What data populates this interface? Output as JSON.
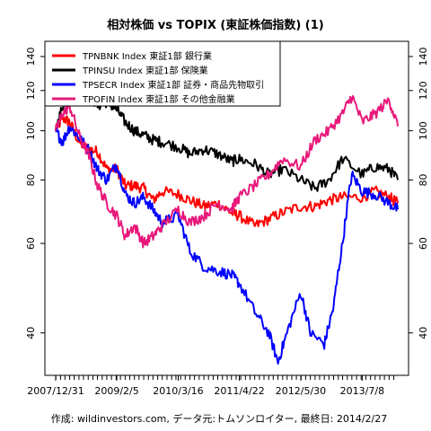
{
  "chart_data": {
    "type": "line",
    "title": "相対株価 vs TOPIX (東証株価指数) (1)",
    "caption": "作成: wildinvestors.com, データ元:トムソンロイター, 最終日: 2014/2/27",
    "y_scale": "log",
    "ylim": [
      33,
      150
    ],
    "y_ticks": [
      40,
      60,
      80,
      100,
      120,
      140
    ],
    "x_range": [
      "2007-12-31",
      "2014-02-27"
    ],
    "x_tick_labels": [
      "2007/12/31",
      "2009/2/5",
      "2010/3/16",
      "2011/4/22",
      "2012/5/30",
      "2013/7/8"
    ],
    "legend_position": "top-left",
    "series": [
      {
        "name": "TPNBNK Index 東証1部 銀行業",
        "color": "#ff0000",
        "points": [
          [
            "2007-12-31",
            100
          ],
          [
            "2008-02-15",
            106
          ],
          [
            "2008-04-01",
            104
          ],
          [
            "2008-06-01",
            95
          ],
          [
            "2008-08-01",
            92
          ],
          [
            "2008-10-01",
            91
          ],
          [
            "2008-12-01",
            84
          ],
          [
            "2009-02-05",
            84
          ],
          [
            "2009-04-01",
            78
          ],
          [
            "2009-06-01",
            78
          ],
          [
            "2009-08-01",
            77
          ],
          [
            "2009-10-01",
            73
          ],
          [
            "2009-12-01",
            76
          ],
          [
            "2010-03-16",
            75
          ],
          [
            "2010-06-01",
            73
          ],
          [
            "2010-09-01",
            71
          ],
          [
            "2010-12-01",
            72
          ],
          [
            "2011-03-01",
            69
          ],
          [
            "2011-04-22",
            68
          ],
          [
            "2011-08-01",
            65
          ],
          [
            "2011-11-01",
            67
          ],
          [
            "2012-02-01",
            69
          ],
          [
            "2012-05-30",
            71
          ],
          [
            "2012-09-01",
            71
          ],
          [
            "2012-12-01",
            73
          ],
          [
            "2013-03-01",
            74
          ],
          [
            "2013-07-08",
            74
          ],
          [
            "2013-10-01",
            76
          ],
          [
            "2014-01-01",
            74
          ],
          [
            "2014-02-27",
            72
          ]
        ]
      },
      {
        "name": "TPINSU Index 東証1部 保険業",
        "color": "#000000",
        "points": [
          [
            "2007-12-31",
            100
          ],
          [
            "2008-02-15",
            112
          ],
          [
            "2008-04-01",
            118
          ],
          [
            "2008-06-01",
            120
          ],
          [
            "2008-08-01",
            119
          ],
          [
            "2008-10-01",
            112
          ],
          [
            "2008-12-01",
            114
          ],
          [
            "2009-02-05",
            110
          ],
          [
            "2009-04-01",
            104
          ],
          [
            "2009-06-01",
            100
          ],
          [
            "2009-08-01",
            98
          ],
          [
            "2009-10-01",
            96
          ],
          [
            "2009-12-01",
            95
          ],
          [
            "2010-03-16",
            93
          ],
          [
            "2010-06-01",
            90
          ],
          [
            "2010-09-01",
            92
          ],
          [
            "2010-12-01",
            90
          ],
          [
            "2011-03-01",
            87
          ],
          [
            "2011-04-22",
            88
          ],
          [
            "2011-08-01",
            86
          ],
          [
            "2011-11-01",
            82
          ],
          [
            "2012-02-01",
            84
          ],
          [
            "2012-05-30",
            80
          ],
          [
            "2012-09-01",
            77
          ],
          [
            "2012-12-01",
            80
          ],
          [
            "2013-03-01",
            88
          ],
          [
            "2013-07-08",
            82
          ],
          [
            "2013-10-01",
            85
          ],
          [
            "2014-01-01",
            84
          ],
          [
            "2014-02-27",
            80
          ]
        ]
      },
      {
        "name": "TPSECR Index 東証1部 証券・商品先物取引",
        "color": "#0000ff",
        "points": [
          [
            "2007-12-31",
            100
          ],
          [
            "2008-02-15",
            95
          ],
          [
            "2008-04-01",
            102
          ],
          [
            "2008-06-01",
            97
          ],
          [
            "2008-08-01",
            92
          ],
          [
            "2008-10-01",
            84
          ],
          [
            "2008-12-01",
            80
          ],
          [
            "2009-02-05",
            86
          ],
          [
            "2009-04-01",
            75
          ],
          [
            "2009-06-01",
            72
          ],
          [
            "2009-08-01",
            74
          ],
          [
            "2009-10-01",
            70
          ],
          [
            "2009-12-01",
            66
          ],
          [
            "2010-03-16",
            68
          ],
          [
            "2010-06-01",
            58
          ],
          [
            "2010-09-01",
            54
          ],
          [
            "2010-12-01",
            53
          ],
          [
            "2011-03-01",
            52
          ],
          [
            "2011-04-22",
            50
          ],
          [
            "2011-08-01",
            44
          ],
          [
            "2011-11-01",
            40
          ],
          [
            "2012-01-01",
            35
          ],
          [
            "2012-03-01",
            40
          ],
          [
            "2012-05-30",
            48
          ],
          [
            "2012-08-01",
            40
          ],
          [
            "2012-11-01",
            38
          ],
          [
            "2013-01-01",
            45
          ],
          [
            "2013-03-01",
            60
          ],
          [
            "2013-05-01",
            82
          ],
          [
            "2013-07-08",
            76
          ],
          [
            "2013-10-01",
            75
          ],
          [
            "2014-01-01",
            72
          ],
          [
            "2014-02-27",
            70
          ]
        ]
      },
      {
        "name": "TPOFIN Index 東証1部 その他金融業",
        "color": "#e8187a",
        "points": [
          [
            "2007-12-31",
            100
          ],
          [
            "2008-02-15",
            108
          ],
          [
            "2008-04-01",
            112
          ],
          [
            "2008-06-01",
            98
          ],
          [
            "2008-08-01",
            90
          ],
          [
            "2008-10-01",
            78
          ],
          [
            "2008-12-01",
            72
          ],
          [
            "2009-02-05",
            68
          ],
          [
            "2009-04-01",
            62
          ],
          [
            "2009-06-01",
            65
          ],
          [
            "2009-08-01",
            60
          ],
          [
            "2009-10-01",
            62
          ],
          [
            "2009-12-01",
            65
          ],
          [
            "2010-03-16",
            70
          ],
          [
            "2010-06-01",
            66
          ],
          [
            "2010-09-01",
            68
          ],
          [
            "2010-12-01",
            72
          ],
          [
            "2011-03-01",
            70
          ],
          [
            "2011-04-22",
            74
          ],
          [
            "2011-08-01",
            78
          ],
          [
            "2011-11-01",
            82
          ],
          [
            "2012-02-01",
            88
          ],
          [
            "2012-05-30",
            85
          ],
          [
            "2012-09-01",
            96
          ],
          [
            "2012-12-01",
            100
          ],
          [
            "2013-03-01",
            108
          ],
          [
            "2013-05-01",
            117
          ],
          [
            "2013-07-08",
            104
          ],
          [
            "2013-10-01",
            108
          ],
          [
            "2014-01-01",
            115
          ],
          [
            "2014-02-27",
            102
          ]
        ]
      }
    ]
  }
}
